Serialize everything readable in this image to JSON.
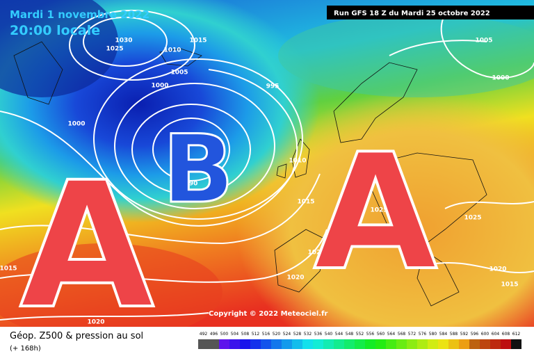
{
  "header": {
    "date": "Mardi 1 novembre 2022",
    "time": "20:00 locale",
    "run": "Run GFS 18 Z du Mardi 25 octobre 2022"
  },
  "map": {
    "pressure_systems": [
      "B",
      "A",
      "A"
    ],
    "isobar_labels": [
      "1030",
      "1025",
      "1015",
      "1010",
      "1005",
      "1000",
      "995",
      "1000",
      "990",
      "1010",
      "1015",
      "1020",
      "1020",
      "1020",
      "1015",
      "1005",
      "1000",
      "1025",
      "1020",
      "1015",
      "1025"
    ],
    "copyright": "Copyright © 2022 Meteociel.fr"
  },
  "footer": {
    "title": "Géop. Z500 & pression au sol",
    "lead": "(+ 168h)",
    "scale": [
      492,
      496,
      500,
      504,
      508,
      512,
      516,
      520,
      524,
      528,
      532,
      536,
      540,
      544,
      548,
      552,
      556,
      560,
      564,
      568,
      572,
      576,
      580,
      584,
      588,
      592,
      596,
      600,
      604,
      608,
      612
    ]
  }
}
